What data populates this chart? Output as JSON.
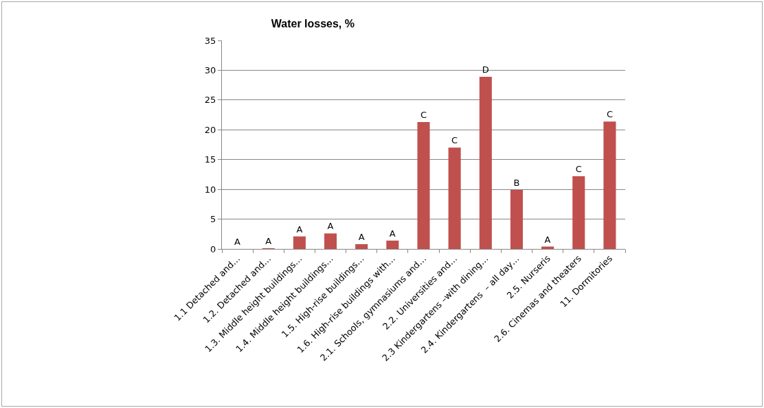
{
  "chart_data": {
    "type": "bar",
    "title": "Water losses, %",
    "categories": [
      "1.1 Detached and…",
      "1.2. Detached and…",
      "1.3. Middle height buildings…",
      "1.4. Middle height buildings…",
      "1.5. High-rise buildings…",
      "1.6. High-rise buildings with…",
      "2.1. Schools, gymnasiums and…",
      "2.2. Universities and…",
      "2.3 Kindergartens –with dining…",
      "2.4. Kindergartens  – all day…",
      "2.5. Nurseris",
      "2.6. Cinemas and theaters",
      "11. Dormitories"
    ],
    "values": [
      0,
      0.1,
      2.1,
      2.6,
      0.8,
      1.4,
      21.3,
      17,
      28.9,
      9.9,
      0.4,
      12.2,
      21.4
    ],
    "value_labels": [
      "A",
      "A",
      "A",
      "A",
      "A",
      "A",
      "C",
      "C",
      "D",
      "B",
      "A",
      "C",
      "C"
    ],
    "color": "#c0504d",
    "ylim": [
      0,
      35
    ],
    "yticks": [
      0,
      5,
      10,
      15,
      20,
      25,
      30,
      35
    ],
    "grid": "y"
  }
}
